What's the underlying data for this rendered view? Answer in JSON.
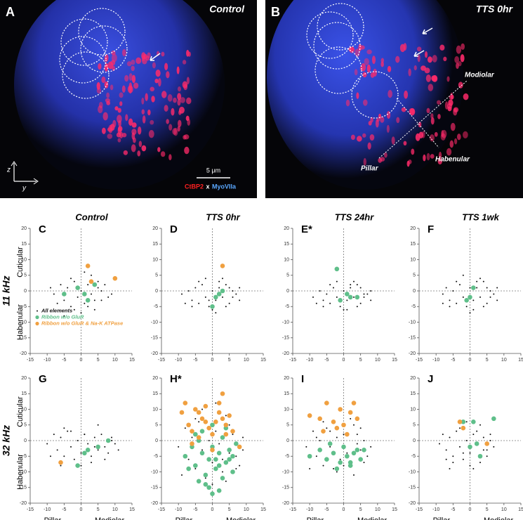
{
  "image_panels": [
    {
      "letter": "A",
      "title": "Control",
      "scale": "5 μm",
      "stain1": "CtBP2",
      "x_sep": "x",
      "stain2": "MyoVIIa",
      "axis_z": "z",
      "axis_y": "y"
    },
    {
      "letter": "B",
      "title": "TTS 0hr",
      "label1": "Modiolar",
      "label2": "Habenular",
      "label3": "Pillar"
    }
  ],
  "chart_data": [
    {
      "type": "scatter",
      "panel": "C",
      "title": "Control",
      "row_label": "11 kHz",
      "ylabel_top": "Cuticular",
      "ylabel_bottom": "Habenular",
      "xlim": [
        -15,
        15
      ],
      "ylim": [
        -20,
        20
      ],
      "xticks": [
        -15,
        -10,
        -5,
        0,
        5,
        10,
        15
      ],
      "yticks": [
        -20,
        -15,
        -10,
        -5,
        0,
        5,
        10,
        15,
        20
      ],
      "series": [
        {
          "name": "All elements",
          "color": "#111111",
          "x": [
            -8,
            -6,
            -5,
            -4,
            -3,
            -2,
            -1,
            0,
            1,
            2,
            3,
            4,
            5,
            6,
            7,
            8,
            -7,
            -3,
            0,
            3,
            6,
            -5,
            2,
            5,
            -1,
            9,
            -9,
            1,
            4,
            -2
          ],
          "y": [
            -1,
            2,
            -3,
            1,
            -5,
            3,
            -2,
            0,
            -4,
            2,
            -1,
            -6,
            1,
            -3,
            2,
            -2,
            -4,
            4,
            -7,
            5,
            0,
            -8,
            -5,
            3,
            1,
            -1,
            1,
            6,
            -3,
            -6
          ]
        },
        {
          "name": "Ribbon w/o GluR",
          "color": "#5fbf8a",
          "x": [
            -5,
            -1,
            1,
            2,
            4
          ],
          "y": [
            -1,
            1,
            -1,
            -3,
            2
          ]
        },
        {
          "name": "Ribbon w/o GluR & Na-K ATPase",
          "color": "#f0a040",
          "x": [
            2,
            10,
            3
          ],
          "y": [
            8,
            4,
            3
          ]
        }
      ]
    },
    {
      "type": "scatter",
      "panel": "D",
      "title": "TTS 0hr",
      "xlim": [
        -15,
        15
      ],
      "ylim": [
        -20,
        20
      ],
      "xticks": [
        -15,
        -10,
        -5,
        0,
        5,
        10,
        15
      ],
      "yticks": [
        -20,
        -15,
        -10,
        -5,
        0,
        5,
        10,
        15,
        20
      ],
      "series": [
        {
          "color": "#111111",
          "x": [
            -9,
            -7,
            -6,
            -5,
            -4,
            -3,
            -2,
            -1,
            0,
            1,
            2,
            3,
            4,
            5,
            6,
            7,
            8,
            -8,
            -4,
            0,
            4,
            8,
            -2,
            2,
            6,
            -6,
            1,
            3,
            -1,
            5
          ],
          "y": [
            -1,
            0,
            -3,
            1,
            -4,
            2,
            -2,
            -5,
            0,
            -3,
            1,
            -2,
            2,
            -4,
            0,
            -1,
            -3,
            -4,
            3,
            -6,
            -5,
            1,
            4,
            3,
            -2,
            -5,
            -7,
            4,
            -3,
            1
          ]
        },
        {
          "color": "#5fbf8a",
          "x": [
            1,
            2,
            3,
            0
          ],
          "y": [
            -2,
            -1,
            0,
            -5
          ]
        },
        {
          "color": "#f0a040",
          "x": [
            3
          ],
          "y": [
            8
          ]
        }
      ]
    },
    {
      "type": "scatter",
      "panel": "E*",
      "title": "TTS 24hr",
      "xlim": [
        -15,
        15
      ],
      "ylim": [
        -20,
        20
      ],
      "xticks": [
        -15,
        -10,
        -5,
        0,
        5,
        10,
        15
      ],
      "yticks": [
        -20,
        -15,
        -10,
        -5,
        0,
        5,
        10,
        15,
        20
      ],
      "series": [
        {
          "color": "#111111",
          "x": [
            -9,
            -7,
            -6,
            -5,
            -4,
            -3,
            -2,
            -1,
            0,
            1,
            2,
            3,
            4,
            5,
            6,
            7,
            8,
            -8,
            -4,
            0,
            4,
            8,
            -2,
            2,
            6,
            -6,
            1,
            3,
            -1,
            5
          ],
          "y": [
            -2,
            0,
            -3,
            -1,
            -4,
            1,
            -2,
            -5,
            0,
            -3,
            1,
            -2,
            2,
            -4,
            -1,
            -1,
            -3,
            -4,
            2,
            -6,
            -5,
            0,
            3,
            2,
            -2,
            -5,
            -6,
            3,
            -3,
            1
          ]
        },
        {
          "color": "#5fbf8a",
          "x": [
            -2,
            -1,
            1,
            2,
            4
          ],
          "y": [
            7,
            -3,
            -1,
            -2,
            -2
          ]
        }
      ]
    },
    {
      "type": "scatter",
      "panel": "F",
      "title": "TTS 1wk",
      "xlim": [
        -15,
        15
      ],
      "ylim": [
        -20,
        20
      ],
      "xticks": [
        -15,
        -10,
        -5,
        0,
        5,
        10,
        15
      ],
      "yticks": [
        -20,
        -15,
        -10,
        -5,
        0,
        5,
        10,
        15,
        20
      ],
      "series": [
        {
          "color": "#111111",
          "x": [
            -8,
            -7,
            -6,
            -5,
            -4,
            -3,
            -2,
            -1,
            0,
            1,
            2,
            3,
            4,
            5,
            6,
            7,
            8,
            -8,
            -4,
            0,
            4,
            8,
            -2,
            2,
            6,
            -6,
            1,
            3,
            -1,
            5
          ],
          "y": [
            -1,
            1,
            -3,
            0,
            -4,
            2,
            -2,
            -5,
            1,
            -3,
            1,
            -2,
            3,
            -4,
            0,
            -1,
            -3,
            -4,
            3,
            -7,
            -5,
            1,
            5,
            3,
            -2,
            -5,
            -6,
            4,
            -3,
            1
          ]
        },
        {
          "color": "#5fbf8a",
          "x": [
            -1,
            0,
            1
          ],
          "y": [
            -3,
            -2,
            1
          ]
        }
      ]
    },
    {
      "type": "scatter",
      "panel": "G",
      "row_label": "32 kHz",
      "ylabel_top": "Cuticular",
      "ylabel_bottom": "Habenular",
      "xlabel_left": "Pillar",
      "xlabel_right": "Modiolar",
      "xlim": [
        -15,
        15
      ],
      "ylim": [
        -20,
        20
      ],
      "xticks": [
        -15,
        -10,
        -5,
        0,
        5,
        10,
        15
      ],
      "yticks": [
        -20,
        -15,
        -10,
        -5,
        0,
        5,
        10,
        15,
        20
      ],
      "series": [
        {
          "color": "#111111",
          "x": [
            -10,
            -8,
            -7,
            -6,
            -5,
            -4,
            -3,
            -2,
            -1,
            0,
            1,
            2,
            3,
            4,
            5,
            6,
            7,
            8,
            9,
            10,
            11,
            -9,
            -5,
            0,
            5,
            9,
            -3,
            3,
            7,
            -6,
            1,
            4
          ],
          "y": [
            -1,
            2,
            -3,
            1,
            -5,
            3,
            -2,
            -6,
            0,
            -4,
            2,
            -1,
            -7,
            1,
            -3,
            2,
            -2,
            -4,
            0,
            -1,
            -3,
            -5,
            4,
            -8,
            5,
            1,
            3,
            -5,
            -6,
            -8,
            2,
            -2
          ]
        },
        {
          "color": "#5fbf8a",
          "x": [
            5,
            8,
            2,
            -1,
            1
          ],
          "y": [
            -2,
            0,
            -3,
            -8,
            -4
          ]
        },
        {
          "color": "#f0a040",
          "x": [
            -6
          ],
          "y": [
            -7
          ]
        }
      ]
    },
    {
      "type": "scatter",
      "panel": "H*",
      "xlabel_left": "Pillar",
      "xlabel_right": "Modiolar",
      "xlim": [
        -15,
        15
      ],
      "ylim": [
        -20,
        20
      ],
      "xticks": [
        -15,
        -10,
        -5,
        0,
        5,
        10,
        15
      ],
      "yticks": [
        -20,
        -15,
        -10,
        -5,
        0,
        5,
        10,
        15,
        20
      ],
      "series": [
        {
          "color": "#111111",
          "x": [
            -10,
            -8,
            -7,
            -6,
            -5,
            -4,
            -3,
            -2,
            -1,
            0,
            1,
            2,
            3,
            4,
            5,
            6,
            7,
            8,
            9,
            -9,
            -5,
            0,
            5,
            9,
            -3,
            3,
            7,
            -6,
            1,
            4
          ],
          "y": [
            -2,
            4,
            -6,
            1,
            -9,
            6,
            -3,
            -12,
            0,
            -7,
            3,
            -1,
            -10,
            8,
            -4,
            2,
            -5,
            -8,
            1,
            -11,
            7,
            -14,
            5,
            -3,
            10,
            -6,
            -9,
            -2,
            12,
            -13
          ]
        },
        {
          "color": "#5fbf8a",
          "x": [
            -8,
            -6,
            -5,
            -4,
            -3,
            -2,
            -1,
            0,
            1,
            2,
            3,
            4,
            5,
            6,
            7,
            -7,
            -4,
            -1,
            2,
            5,
            -3,
            0,
            3,
            -5,
            1,
            4,
            -2,
            6,
            0,
            2
          ],
          "y": [
            -5,
            -2,
            -8,
            0,
            -4,
            -11,
            -6,
            -2,
            -9,
            -4,
            1,
            -7,
            -3,
            -10,
            -1,
            -9,
            -13,
            -15,
            -16,
            -6,
            3,
            5,
            -12,
            2,
            -6,
            4,
            -14,
            -5,
            -17,
            -8
          ]
        },
        {
          "color": "#f0a040",
          "x": [
            -9,
            -8,
            -7,
            -6,
            -5,
            -4,
            -3,
            -2,
            -1,
            0,
            1,
            2,
            3,
            4,
            5,
            6,
            -6,
            -2,
            2,
            4,
            8,
            -4,
            0,
            3
          ],
          "y": [
            9,
            12,
            5,
            3,
            10,
            1,
            7,
            11,
            4,
            2,
            6,
            9,
            15,
            5,
            8,
            3,
            -1,
            6,
            12,
            2,
            -2,
            9,
            -3,
            7
          ]
        }
      ]
    },
    {
      "type": "scatter",
      "panel": "I",
      "xlabel_left": "Pillar",
      "xlabel_right": "Modiolar",
      "xlim": [
        -15,
        15
      ],
      "ylim": [
        -20,
        20
      ],
      "xticks": [
        -15,
        -10,
        -5,
        0,
        5,
        10,
        15
      ],
      "yticks": [
        -20,
        -15,
        -10,
        -5,
        0,
        5,
        10,
        15,
        20
      ],
      "series": [
        {
          "color": "#111111",
          "x": [
            -11,
            -9,
            -8,
            -7,
            -6,
            -5,
            -4,
            -3,
            -2,
            -1,
            0,
            1,
            2,
            3,
            4,
            5,
            6,
            7,
            8,
            -10,
            -6,
            -2,
            2,
            6,
            -4,
            0,
            4,
            -8,
            3,
            5
          ],
          "y": [
            -2,
            3,
            -5,
            0,
            -8,
            4,
            -2,
            -9,
            1,
            -6,
            2,
            -4,
            -7,
            5,
            -1,
            -3,
            0,
            -5,
            -2,
            -9,
            6,
            -10,
            7,
            -7,
            3,
            -8,
            2,
            1,
            -11,
            4
          ]
        },
        {
          "color": "#5fbf8a",
          "x": [
            -10,
            -7,
            -5,
            -3,
            -1,
            0,
            1,
            2,
            3,
            4,
            5,
            -4,
            -2,
            2,
            6
          ],
          "y": [
            -5,
            -3,
            -6,
            -4,
            -7,
            -2,
            -5,
            -8,
            -4,
            -3,
            -6,
            -1,
            -9,
            -7,
            -3
          ]
        },
        {
          "color": "#f0a040",
          "x": [
            -10,
            -7,
            -5,
            -3,
            -1,
            0,
            2,
            3,
            4,
            -6,
            -2,
            1
          ],
          "y": [
            8,
            7,
            12,
            6,
            10,
            5,
            9,
            12,
            7,
            3,
            4,
            2
          ]
        }
      ]
    },
    {
      "type": "scatter",
      "panel": "J",
      "xlabel_left": "Pillar",
      "xlabel_right": "Modiolar",
      "xlim": [
        -15,
        15
      ],
      "ylim": [
        -20,
        20
      ],
      "xticks": [
        -15,
        -10,
        -5,
        0,
        5,
        10,
        15
      ],
      "yticks": [
        -20,
        -15,
        -10,
        -5,
        0,
        5,
        10,
        15,
        20
      ],
      "series": [
        {
          "color": "#111111",
          "x": [
            -9,
            -8,
            -7,
            -6,
            -5,
            -4,
            -3,
            -2,
            -1,
            0,
            1,
            2,
            3,
            4,
            5,
            6,
            7,
            -7,
            -3,
            0,
            3,
            6,
            -5,
            2,
            5,
            -1,
            1,
            4,
            -2,
            -6
          ],
          "y": [
            -1,
            2,
            -3,
            1,
            -5,
            3,
            -2,
            -6,
            0,
            -4,
            2,
            -1,
            -7,
            1,
            -3,
            2,
            -2,
            -6,
            4,
            -8,
            5,
            0,
            -7,
            3,
            -5,
            6,
            -9,
            -3,
            -4,
            -9
          ]
        },
        {
          "color": "#5fbf8a",
          "x": [
            -2,
            1,
            2,
            3,
            7,
            0
          ],
          "y": [
            6,
            6,
            -1,
            -5,
            7,
            -2
          ]
        },
        {
          "color": "#f0a040",
          "x": [
            -3,
            5,
            -2
          ],
          "y": [
            6,
            -1,
            4
          ]
        }
      ]
    }
  ]
}
